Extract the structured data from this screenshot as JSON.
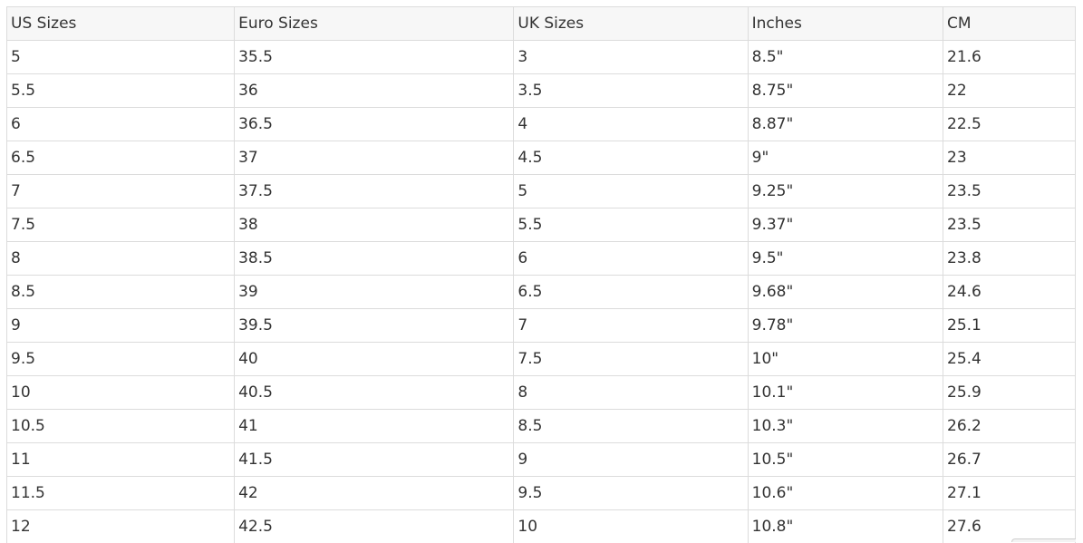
{
  "table": {
    "headers": [
      "US Sizes",
      "Euro Sizes",
      "UK Sizes",
      "Inches",
      "CM"
    ],
    "rows": [
      [
        "5",
        "35.5",
        "3",
        "8.5\"",
        "21.6"
      ],
      [
        "5.5",
        "36",
        "3.5",
        "8.75\"",
        "22"
      ],
      [
        "6",
        "36.5",
        "4",
        "8.87\"",
        "22.5"
      ],
      [
        "6.5",
        "37",
        "4.5",
        "9\"",
        "23"
      ],
      [
        "7",
        "37.5",
        "5",
        "9.25\"",
        "23.5"
      ],
      [
        "7.5",
        "38",
        "5.5",
        "9.37\"",
        "23.5"
      ],
      [
        "8",
        "38.5",
        "6",
        "9.5\"",
        "23.8"
      ],
      [
        "8.5",
        "39",
        "6.5",
        "9.68\"",
        "24.6"
      ],
      [
        "9",
        "39.5",
        "7",
        "9.78\"",
        "25.1"
      ],
      [
        "9.5",
        "40",
        "7.5",
        "10\"",
        "25.4"
      ],
      [
        "10",
        "40.5",
        "8",
        "10.1\"",
        "25.9"
      ],
      [
        "10.5",
        "41",
        "8.5",
        "10.3\"",
        "26.2"
      ],
      [
        "11",
        "41.5",
        "9",
        "10.5\"",
        "26.7"
      ],
      [
        "11.5",
        "42",
        "9.5",
        "10.6\"",
        "27.1"
      ],
      [
        "12",
        "42.5",
        "10",
        "10.8\"",
        "27.6"
      ]
    ]
  }
}
